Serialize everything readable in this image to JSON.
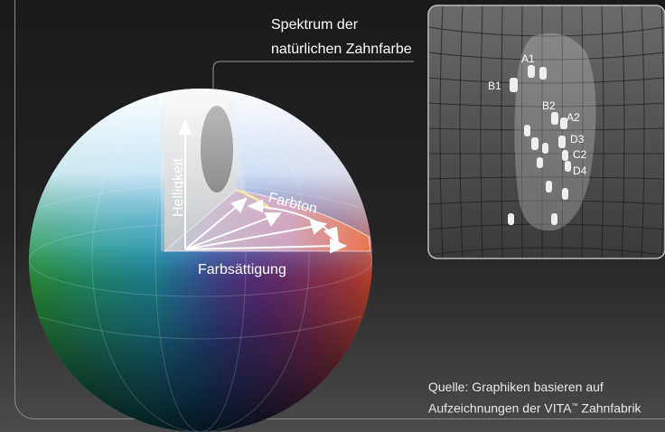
{
  "title_line1": "Spektrum der",
  "title_line2": "natürlichen Zahnfarbe",
  "axes": {
    "helligkeit": "Helligkeit",
    "farbton": "Farbton",
    "farbsaettigung": "Farbsättigung"
  },
  "shade_labels": [
    "A1",
    "B1",
    "B2",
    "A2",
    "D3",
    "C2",
    "D4"
  ],
  "source_line1": "Quelle: Graphiken basieren auf",
  "source_line2_pre": "Aufzeichnungen der VITA",
  "source_tm": "™",
  "source_line2_post": " Zahnfabrik"
}
